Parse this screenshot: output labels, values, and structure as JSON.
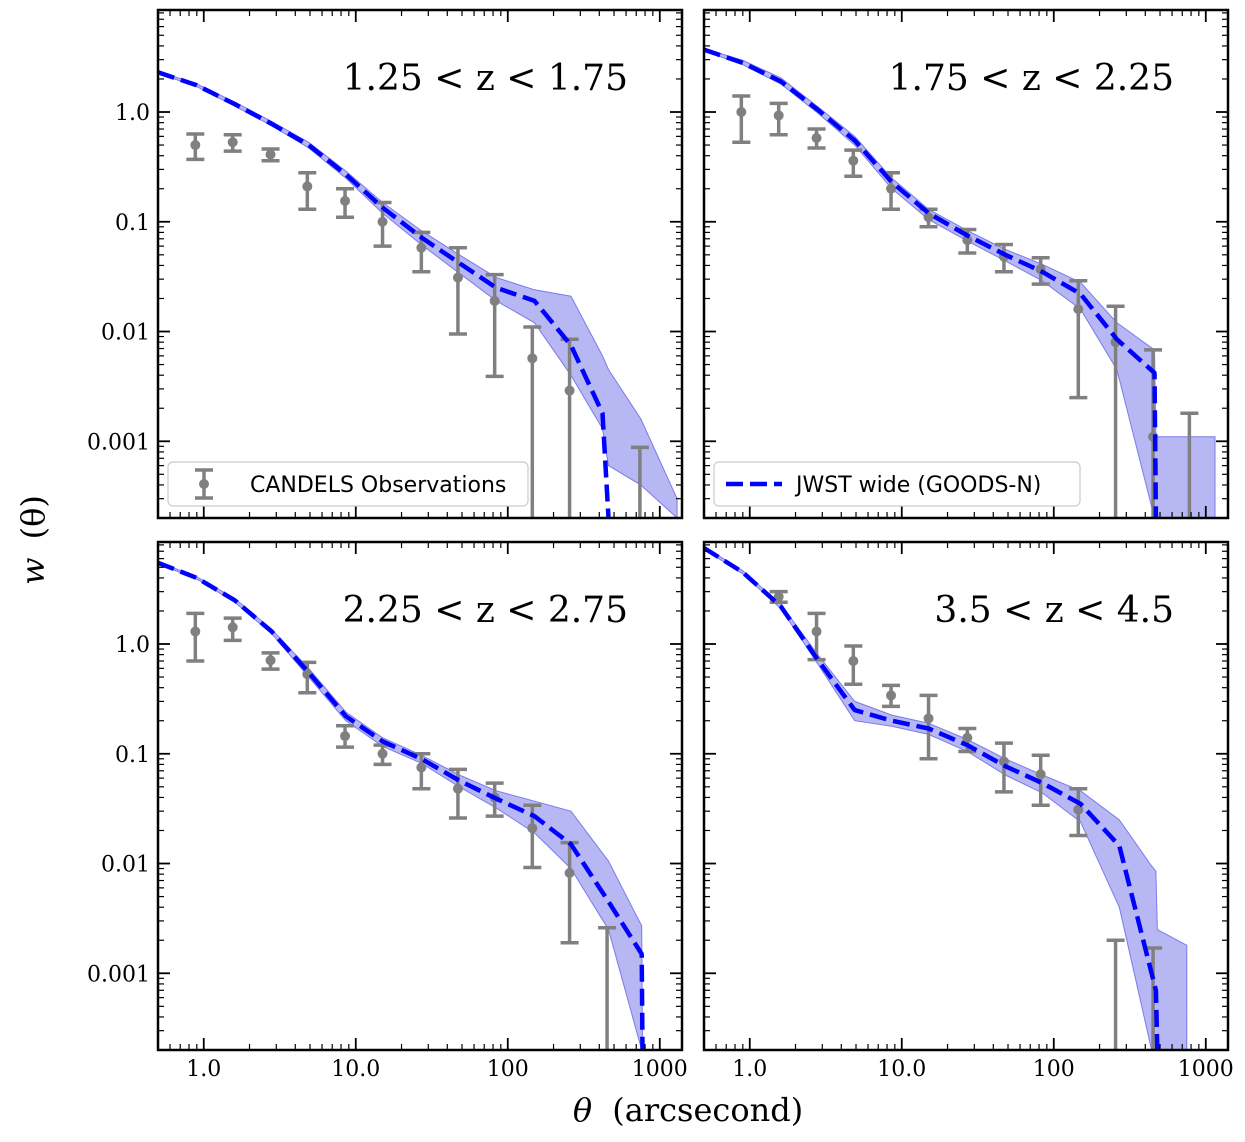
{
  "figure": {
    "xlabel_symbol": "θ",
    "xlabel_unit": "(arcsecond)",
    "ylabel_main": "w",
    "ylabel_arg": "(θ)"
  },
  "axes": {
    "xscale": "log",
    "yscale": "log",
    "xlim": [
      0.5,
      1400
    ],
    "ylim": [
      0.0002,
      8.5
    ],
    "xticks": [
      1,
      10,
      100,
      1000
    ],
    "xtick_labels": [
      "1.0",
      "10.0",
      "100",
      "1000"
    ],
    "yticks": [
      0.001,
      0.01,
      0.1,
      1
    ],
    "ytick_labels": [
      "0.001",
      "0.01",
      "0.1",
      "1.0"
    ],
    "tick_direction": "in",
    "grid": false,
    "sharex": true,
    "sharey": true
  },
  "legend": {
    "observations": "CANDELS Observations",
    "model": "JWST wide (GOODS-N)"
  },
  "colors": {
    "observations": "#808080",
    "model_line": "#0000ff",
    "model_band": "#7b7bea"
  },
  "chart_data": [
    {
      "type": "line",
      "label": "1.25 < z < 1.75",
      "legend": "observations",
      "observations": {
        "x": [
          0.88,
          1.55,
          2.75,
          4.8,
          8.5,
          15,
          27,
          47,
          82,
          145,
          255
        ],
        "y": [
          0.5,
          0.53,
          0.41,
          0.21,
          0.155,
          0.1,
          0.058,
          0.031,
          0.019,
          0.0057,
          0.0029
        ],
        "ylo": [
          0.37,
          0.44,
          0.36,
          0.13,
          0.11,
          0.06,
          0.035,
          0.0095,
          0.0039,
          0.0001,
          0.0001
        ],
        "yhi": [
          0.63,
          0.62,
          0.46,
          0.28,
          0.2,
          0.15,
          0.08,
          0.058,
          0.033,
          0.011,
          0.0085
        ]
      },
      "model": {
        "x": [
          0.5,
          0.9,
          1.6,
          2.8,
          4.9,
          8.6,
          15,
          27,
          48,
          84,
          150,
          260,
          420,
          460,
          750,
          1300
        ],
        "y": [
          2.3,
          1.75,
          1.18,
          0.78,
          0.5,
          0.27,
          0.135,
          0.072,
          0.042,
          0.025,
          0.019,
          0.0075,
          0.0018,
          0.0002,
          null,
          null
        ],
        "ylo": [
          2.25,
          1.7,
          1.13,
          0.75,
          0.47,
          0.25,
          0.12,
          0.062,
          0.034,
          0.019,
          0.012,
          0.004,
          0.0013,
          0.0006,
          0.0004,
          0.0002
        ],
        "yhi": [
          2.35,
          1.8,
          1.23,
          0.82,
          0.53,
          0.29,
          0.15,
          0.083,
          0.05,
          0.031,
          0.024,
          0.021,
          0.006,
          0.0045,
          0.0016,
          0.0003
        ]
      },
      "extra_errorbars": [
        {
          "x": 740,
          "ylo": 0.0001,
          "yhi": 0.00088
        }
      ]
    },
    {
      "type": "line",
      "label": "1.75 < z < 2.25",
      "legend": "model",
      "observations": {
        "x": [
          0.88,
          1.55,
          2.75,
          4.8,
          8.5,
          15,
          27,
          47,
          82,
          145,
          255,
          450,
          780
        ],
        "y": [
          1.0,
          0.93,
          0.58,
          0.36,
          0.2,
          0.11,
          0.068,
          0.048,
          0.037,
          0.016,
          0.008,
          0.0011,
          null
        ],
        "ylo": [
          0.53,
          0.62,
          0.47,
          0.26,
          0.13,
          0.09,
          0.052,
          0.035,
          0.027,
          0.0025,
          0.0001,
          0.0001,
          0.0001
        ],
        "yhi": [
          1.4,
          1.2,
          0.7,
          0.45,
          0.28,
          0.13,
          0.085,
          0.062,
          0.047,
          0.029,
          0.017,
          0.0068,
          0.0018
        ]
      },
      "model": {
        "x": [
          0.5,
          0.9,
          1.6,
          2.8,
          4.9,
          8.6,
          15,
          27,
          48,
          84,
          150,
          260,
          460,
          470
        ],
        "y": [
          3.7,
          2.8,
          1.9,
          1.05,
          0.55,
          0.23,
          0.12,
          0.075,
          0.05,
          0.035,
          0.022,
          0.0085,
          0.0042,
          0.0002
        ],
        "ylo": [
          3.6,
          2.7,
          1.8,
          0.98,
          0.5,
          0.2,
          0.105,
          0.067,
          0.044,
          0.029,
          0.016,
          0.0045,
          0.0002,
          0.0002
        ],
        "yhi": [
          3.8,
          2.95,
          2.05,
          1.12,
          0.6,
          0.25,
          0.13,
          0.083,
          0.056,
          0.041,
          0.028,
          0.012,
          0.0068,
          0.0011
        ]
      },
      "band_extension": {
        "x": [
          470,
          780,
          1150
        ],
        "ylo": [
          0.0002,
          0.0002,
          0.0002
        ],
        "yhi": [
          0.0011,
          0.0011,
          0.0011
        ]
      }
    },
    {
      "type": "line",
      "label": "2.25 < z < 2.75",
      "observations": {
        "x": [
          0.88,
          1.55,
          2.75,
          4.8,
          8.5,
          15,
          27,
          47,
          82,
          145,
          255,
          450
        ],
        "y": [
          1.3,
          1.42,
          0.71,
          0.53,
          0.145,
          0.1,
          0.075,
          0.048,
          0.04,
          0.021,
          0.0082,
          null
        ],
        "ylo": [
          0.7,
          1.08,
          0.59,
          0.36,
          0.115,
          0.08,
          0.048,
          0.026,
          0.027,
          0.0092,
          0.0019,
          0.0001
        ],
        "yhi": [
          1.9,
          1.72,
          0.83,
          0.68,
          0.18,
          0.12,
          0.1,
          0.072,
          0.054,
          0.034,
          0.0155,
          0.0026
        ]
      },
      "model": {
        "x": [
          0.5,
          0.9,
          1.6,
          2.8,
          4.9,
          8.6,
          15,
          27,
          48,
          84,
          150,
          260,
          460,
          760,
          770
        ],
        "y": [
          5.5,
          4.0,
          2.5,
          1.3,
          0.55,
          0.22,
          0.13,
          0.09,
          0.057,
          0.039,
          0.027,
          0.015,
          0.0045,
          0.0015,
          0.0002
        ],
        "ylo": [
          5.4,
          3.9,
          2.4,
          1.24,
          0.5,
          0.2,
          0.117,
          0.082,
          0.05,
          0.032,
          0.019,
          0.009,
          0.0025,
          0.0002,
          0.0002
        ],
        "yhi": [
          5.6,
          4.1,
          2.6,
          1.36,
          0.6,
          0.24,
          0.14,
          0.097,
          0.064,
          0.046,
          0.037,
          0.03,
          0.0105,
          0.0027,
          0.0002
        ]
      }
    },
    {
      "type": "line",
      "label": "3.5 < z < 4.5",
      "observations": {
        "x": [
          1.55,
          2.75,
          4.8,
          8.5,
          15,
          27,
          47,
          82,
          145,
          255,
          450
        ],
        "y": [
          2.7,
          1.3,
          0.7,
          0.34,
          0.21,
          0.14,
          0.085,
          0.065,
          0.031,
          null,
          null
        ],
        "ylo": [
          2.4,
          0.72,
          0.43,
          0.27,
          0.09,
          0.105,
          0.045,
          0.034,
          0.018,
          0.0001,
          0.0001
        ],
        "yhi": [
          3.0,
          1.9,
          0.96,
          0.42,
          0.34,
          0.17,
          0.125,
          0.097,
          0.048,
          0.002,
          0.0017
        ]
      },
      "model": {
        "x": [
          0.5,
          0.9,
          1.6,
          2.8,
          4.9,
          8.6,
          15,
          27,
          48,
          84,
          150,
          270,
          440,
          470,
          480
        ],
        "y": [
          7.5,
          4.5,
          2.2,
          0.72,
          0.25,
          0.2,
          0.17,
          0.12,
          0.077,
          0.054,
          0.035,
          0.0145,
          0.001,
          0.0007,
          0.0002
        ],
        "ylo": [
          7.3,
          4.35,
          2.1,
          0.66,
          0.2,
          0.178,
          0.15,
          0.105,
          0.064,
          0.044,
          0.024,
          0.004,
          0.0002,
          0.0002,
          0.0002
        ],
        "yhi": [
          7.7,
          4.65,
          2.3,
          0.8,
          0.3,
          0.225,
          0.19,
          0.135,
          0.09,
          0.064,
          0.046,
          0.025,
          0.0095,
          0.0085,
          0.0025
        ]
      },
      "band_extension": {
        "x": [
          480,
          750
        ],
        "ylo": [
          0.0002,
          0.0002
        ],
        "yhi": [
          0.0025,
          0.0018
        ]
      }
    }
  ]
}
